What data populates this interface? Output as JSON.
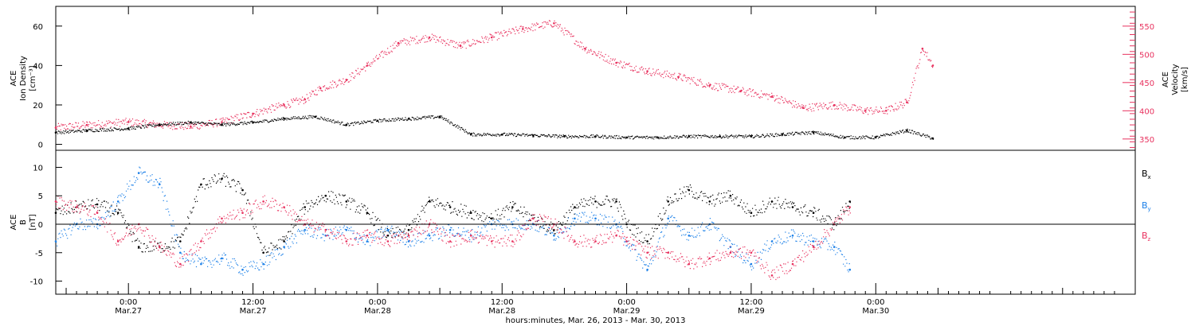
{
  "chart_data": [
    {
      "type": "scatter",
      "panel": "top",
      "ylabel_left": [
        "ACE",
        "Ion Density",
        "[cm⁻³]"
      ],
      "ylabel_right": [
        "ACE",
        "Velocity",
        "[km/s]"
      ],
      "ylim_left": [
        -3,
        70
      ],
      "ylim_right": [
        330,
        585
      ],
      "yticks_left": [
        0,
        20,
        40,
        60
      ],
      "yticks_right": [
        350,
        400,
        450,
        500,
        550
      ],
      "x_units": "hours since Mar. 26, 2013 0:00",
      "series": [
        {
          "name": "",
          "axis": "left",
          "color": "#000000",
          "x": [
            17,
            20,
            24,
            27,
            30,
            33,
            36,
            39,
            42,
            45,
            48,
            51,
            54,
            57,
            60,
            63,
            66,
            69,
            72,
            75,
            78,
            81,
            84,
            87,
            90,
            93,
            96,
            99,
            101.5
          ],
          "y": [
            6,
            7,
            8,
            10,
            11,
            10,
            11,
            13,
            14,
            10,
            12,
            13,
            14,
            5,
            5,
            4.5,
            4,
            4,
            3.5,
            3.5,
            4,
            4,
            4,
            5,
            6,
            3.5,
            3.5,
            7,
            3
          ]
        },
        {
          "name": "",
          "axis": "right",
          "color": "#e8315e",
          "x": [
            17,
            20,
            24,
            27,
            30,
            33,
            36,
            39,
            41,
            42.5,
            45,
            47,
            50,
            53,
            56,
            59,
            62,
            65,
            68,
            71,
            74,
            77,
            80,
            83,
            86,
            89,
            92,
            95,
            97,
            99,
            100.5,
            101.5
          ],
          "y": [
            370,
            375,
            380,
            375,
            372,
            380,
            395,
            410,
            420,
            440,
            455,
            480,
            520,
            530,
            515,
            530,
            545,
            555,
            510,
            485,
            470,
            460,
            445,
            435,
            425,
            405,
            410,
            400,
            400,
            415,
            510,
            480
          ]
        }
      ]
    },
    {
      "type": "scatter",
      "panel": "bottom",
      "ylabel": [
        "ACE",
        "B",
        "[nT]"
      ],
      "ylim": [
        -12.3,
        13
      ],
      "yticks": [
        -10,
        -5,
        0,
        5,
        10
      ],
      "xlabel": "hours:minutes, Mar. 26, 2013 - Mar. 30, 2013",
      "xlim": [
        17,
        121
      ],
      "xticks": [
        {
          "x": 24,
          "time": "0:00",
          "date": "Mar.27"
        },
        {
          "x": 36,
          "time": "12:00",
          "date": "Mar.27"
        },
        {
          "x": 48,
          "time": "0:00",
          "date": "Mar.28"
        },
        {
          "x": 60,
          "time": "12:00",
          "date": "Mar.28"
        },
        {
          "x": 72,
          "time": "0:00",
          "date": "Mar.29"
        },
        {
          "x": 84,
          "time": "12:00",
          "date": "Mar.29"
        },
        {
          "x": 96,
          "time": "0:00",
          "date": "Mar.30"
        }
      ],
      "series": [
        {
          "name": "Bx",
          "label_main": "B",
          "label_sub": "x",
          "color": "#000000",
          "x": [
            17,
            19,
            21,
            23,
            25,
            27,
            29,
            31,
            33,
            35,
            37,
            39,
            41,
            43,
            45,
            47,
            49,
            51,
            53,
            55,
            57,
            59,
            61,
            63,
            65,
            67,
            69,
            71,
            72,
            74,
            76,
            78,
            80,
            82,
            84,
            86,
            88,
            90,
            92,
            93.5
          ],
          "y": [
            2,
            3,
            3.5,
            2,
            -4,
            -4,
            -3,
            7,
            8,
            6,
            -5,
            -3,
            3,
            5,
            4,
            2,
            -2,
            -1,
            4,
            3,
            2,
            1,
            3,
            1,
            -1,
            3,
            4,
            4,
            0,
            -3,
            4,
            6,
            4,
            5,
            2,
            4,
            3,
            2,
            0,
            4
          ]
        },
        {
          "name": "By",
          "label_main": "B",
          "label_sub": "y",
          "color": "#1c80e8",
          "x": [
            17,
            19,
            21,
            23,
            25,
            27,
            29,
            31,
            33,
            35,
            37,
            39,
            41,
            43,
            45,
            47,
            49,
            51,
            53,
            55,
            57,
            59,
            61,
            63,
            65,
            67,
            69,
            71,
            72,
            74,
            76,
            78,
            80,
            82,
            84,
            86,
            88,
            90,
            92,
            93.5
          ],
          "y": [
            -3,
            0,
            0,
            4,
            9,
            7,
            -5,
            -7,
            -6,
            -8,
            -7,
            -4,
            -1,
            -2,
            -1,
            -3,
            -1,
            -3,
            -2,
            -1,
            -2,
            0,
            0,
            0,
            -2,
            1,
            1,
            0,
            -3,
            -8,
            1,
            -2,
            0,
            -4,
            -7,
            -3,
            -2,
            -3,
            -4,
            -8
          ]
        },
        {
          "name": "Bz",
          "label_main": "B",
          "label_sub": "z",
          "color": "#e8315e",
          "x": [
            17,
            19,
            21,
            23,
            25,
            27,
            29,
            31,
            33,
            35,
            37,
            39,
            41,
            43,
            45,
            47,
            49,
            51,
            53,
            55,
            57,
            59,
            61,
            63,
            65,
            67,
            69,
            71,
            72,
            74,
            76,
            78,
            80,
            82,
            84,
            86,
            88,
            90,
            92,
            93.5
          ],
          "y": [
            4,
            3,
            2,
            -3,
            0,
            -4,
            -7,
            -3,
            1,
            2,
            4,
            3,
            0,
            -1,
            -3,
            -2,
            -3,
            -2,
            0,
            -3,
            -2,
            -3,
            -3,
            1,
            0,
            -3,
            -3,
            -2,
            -3,
            -5,
            -5,
            -7,
            -6,
            -5,
            -5,
            -9,
            -7,
            -4,
            0,
            3
          ]
        }
      ]
    }
  ]
}
